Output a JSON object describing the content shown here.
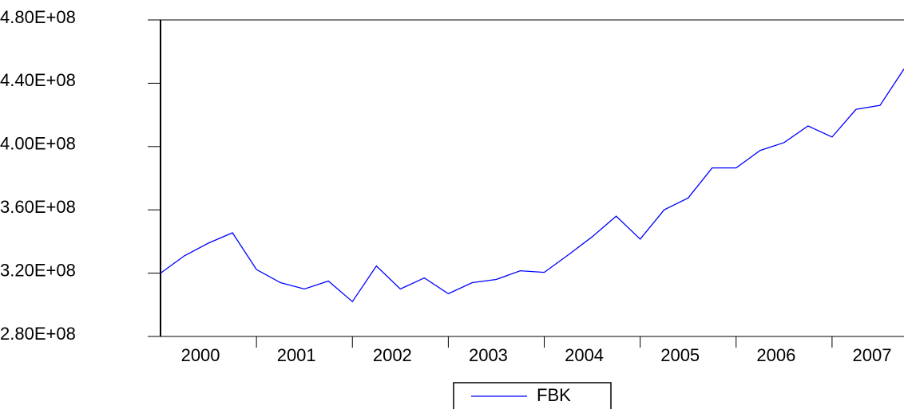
{
  "chart_data": {
    "type": "line",
    "categories": [
      "2000",
      null,
      null,
      null,
      "2001",
      null,
      null,
      null,
      "2002",
      null,
      null,
      null,
      "2003",
      null,
      null,
      null,
      "2004",
      null,
      null,
      null,
      "2005",
      null,
      null,
      null,
      "2006",
      null,
      null,
      null,
      "2007",
      null,
      null,
      null
    ],
    "series": [
      {
        "name": "FBK",
        "color": "#0000ff",
        "values": [
          320000000,
          331000000,
          339000000,
          345500000,
          322300000,
          314000000,
          310000000,
          315000000,
          302000000,
          324500000,
          310000000,
          317000000,
          307000000,
          314000000,
          316000000,
          321500000,
          320500000,
          331500000,
          343000000,
          356000000,
          341500000,
          360000000,
          367500000,
          386500000,
          386500000,
          397500000,
          402500000,
          413000000,
          406000000,
          423500000,
          426000000,
          449000000
        ]
      }
    ],
    "ylim": [
      280000000,
      480000000
    ],
    "yticks": [
      {
        "value": 280000000,
        "label": "2.80E+08"
      },
      {
        "value": 320000000,
        "label": "3.20E+08"
      },
      {
        "value": 360000000,
        "label": "3.60E+08"
      },
      {
        "value": 400000000,
        "label": "4.00E+08"
      },
      {
        "value": 440000000,
        "label": "4.40E+08"
      },
      {
        "value": 480000000,
        "label": "4.80E+08"
      }
    ]
  }
}
